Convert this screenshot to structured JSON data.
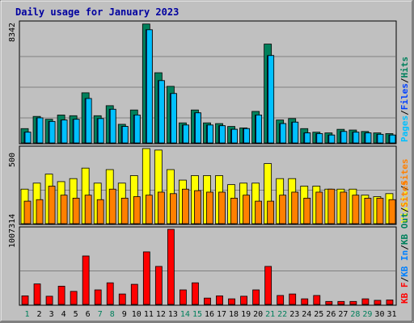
{
  "chart_data": {
    "type": "bar",
    "title": "Daily usage for January 2023",
    "categories": [
      "1",
      "2",
      "3",
      "4",
      "5",
      "6",
      "7",
      "8",
      "9",
      "10",
      "11",
      "12",
      "13",
      "14",
      "15",
      "16",
      "17",
      "18",
      "19",
      "20",
      "21",
      "22",
      "23",
      "24",
      "25",
      "26",
      "27",
      "28",
      "29",
      "30",
      "31"
    ],
    "weekend_days": [
      1,
      7,
      8,
      14,
      15,
      21,
      22,
      28,
      29
    ],
    "colors": {
      "weekday_label": "#000000",
      "weekend_label": "#00805c",
      "hits": "#00805c",
      "files": "#0040ff",
      "pages": "#00c0ff",
      "visits": "#ffff00",
      "sites": "#ff8000",
      "kbytes": "#ff0000",
      "kb_in": "#0080ff",
      "kb_out": "#00805c"
    },
    "panels": [
      {
        "name": "hits-files-pages",
        "max_label": "8342",
        "ylim": [
          0,
          8342
        ],
        "series": [
          {
            "name": "Hits",
            "values": [
              1000,
              1850,
              1650,
              1950,
              1900,
              3500,
              1900,
              2600,
              1300,
              2300,
              8300,
              4900,
              3950,
              1400,
              2300,
              1400,
              1350,
              1150,
              1050,
              2200,
              6900,
              1600,
              1700,
              1000,
              750,
              700,
              950,
              900,
              800,
              700,
              650
            ]
          },
          {
            "name": "Files",
            "values": [
              750,
              1750,
              1500,
              1600,
              1650,
              3100,
              1700,
              2350,
              1150,
              1950,
              7900,
              4350,
              3450,
              1250,
              2100,
              1250,
              1200,
              950,
              1000,
              1950,
              6100,
              1350,
              1450,
              700,
              650,
              550,
              800,
              750,
              700,
              600,
              550
            ]
          },
          {
            "name": "Pages",
            "values": [
              750,
              1750,
              1500,
              1600,
              1650,
              3100,
              1700,
              2350,
              1150,
              1950,
              7900,
              4350,
              3450,
              1250,
              2100,
              1250,
              1200,
              950,
              1000,
              1950,
              6100,
              1350,
              1450,
              700,
              650,
              550,
              800,
              750,
              700,
              600,
              550
            ]
          }
        ],
        "legend": [
          {
            "name": "Pages",
            "color_key": "pages"
          },
          {
            "name": "/",
            "color_key": "separator"
          },
          {
            "name": "Files",
            "color_key": "files"
          },
          {
            "name": "/",
            "color_key": "separator"
          },
          {
            "name": "Hits",
            "color_key": "hits"
          }
        ]
      },
      {
        "name": "visits-sites",
        "max_label": "500",
        "ylim": [
          0,
          500
        ],
        "series": [
          {
            "name": "Visits",
            "values": [
              230,
              270,
              330,
              280,
              300,
              370,
              270,
              360,
              270,
              320,
              500,
              490,
              360,
              290,
              320,
              320,
              320,
              260,
              270,
              270,
              400,
              300,
              300,
              250,
              250,
              230,
              230,
              230,
              190,
              180,
              200
            ]
          },
          {
            "name": "Sites",
            "values": [
              150,
              160,
              250,
              190,
              170,
              190,
              160,
              230,
              170,
              180,
              190,
              210,
              200,
              230,
              220,
              210,
              210,
              170,
              190,
              150,
              150,
              190,
              210,
              170,
              210,
              230,
              210,
              190,
              170,
              170,
              160
            ]
          }
        ],
        "legend": [
          {
            "name": "Visits",
            "color_key": "visits"
          },
          {
            "name": "/",
            "color_key": "separator"
          },
          {
            "name": "Sites",
            "color_key": "sites"
          }
        ]
      },
      {
        "name": "kbytes",
        "max_label": "1007314",
        "ylim": [
          0,
          1007314
        ],
        "series": [
          {
            "name": "KB F",
            "values": [
              115000,
              275000,
              110000,
              245000,
              175000,
              650000,
              195000,
              290000,
              140000,
              270000,
              705000,
              510000,
              1007314,
              195000,
              290000,
              85000,
              115000,
              75000,
              110000,
              195000,
              510000,
              120000,
              140000,
              75000,
              120000,
              40000,
              40000,
              40000,
              75000,
              55000,
              60000
            ]
          }
        ],
        "legend": [
          {
            "name": "KB F",
            "color_key": "kbytes"
          },
          {
            "name": "/",
            "color_key": "separator"
          },
          {
            "name": "KB In",
            "color_key": "kb_in"
          },
          {
            "name": "/",
            "color_key": "separator"
          },
          {
            "name": "KB Out",
            "color_key": "kb_out"
          },
          {
            "name": "/",
            "color_key": "separator"
          },
          {
            "name": "Sites",
            "color_key": "sites"
          }
        ]
      }
    ]
  }
}
